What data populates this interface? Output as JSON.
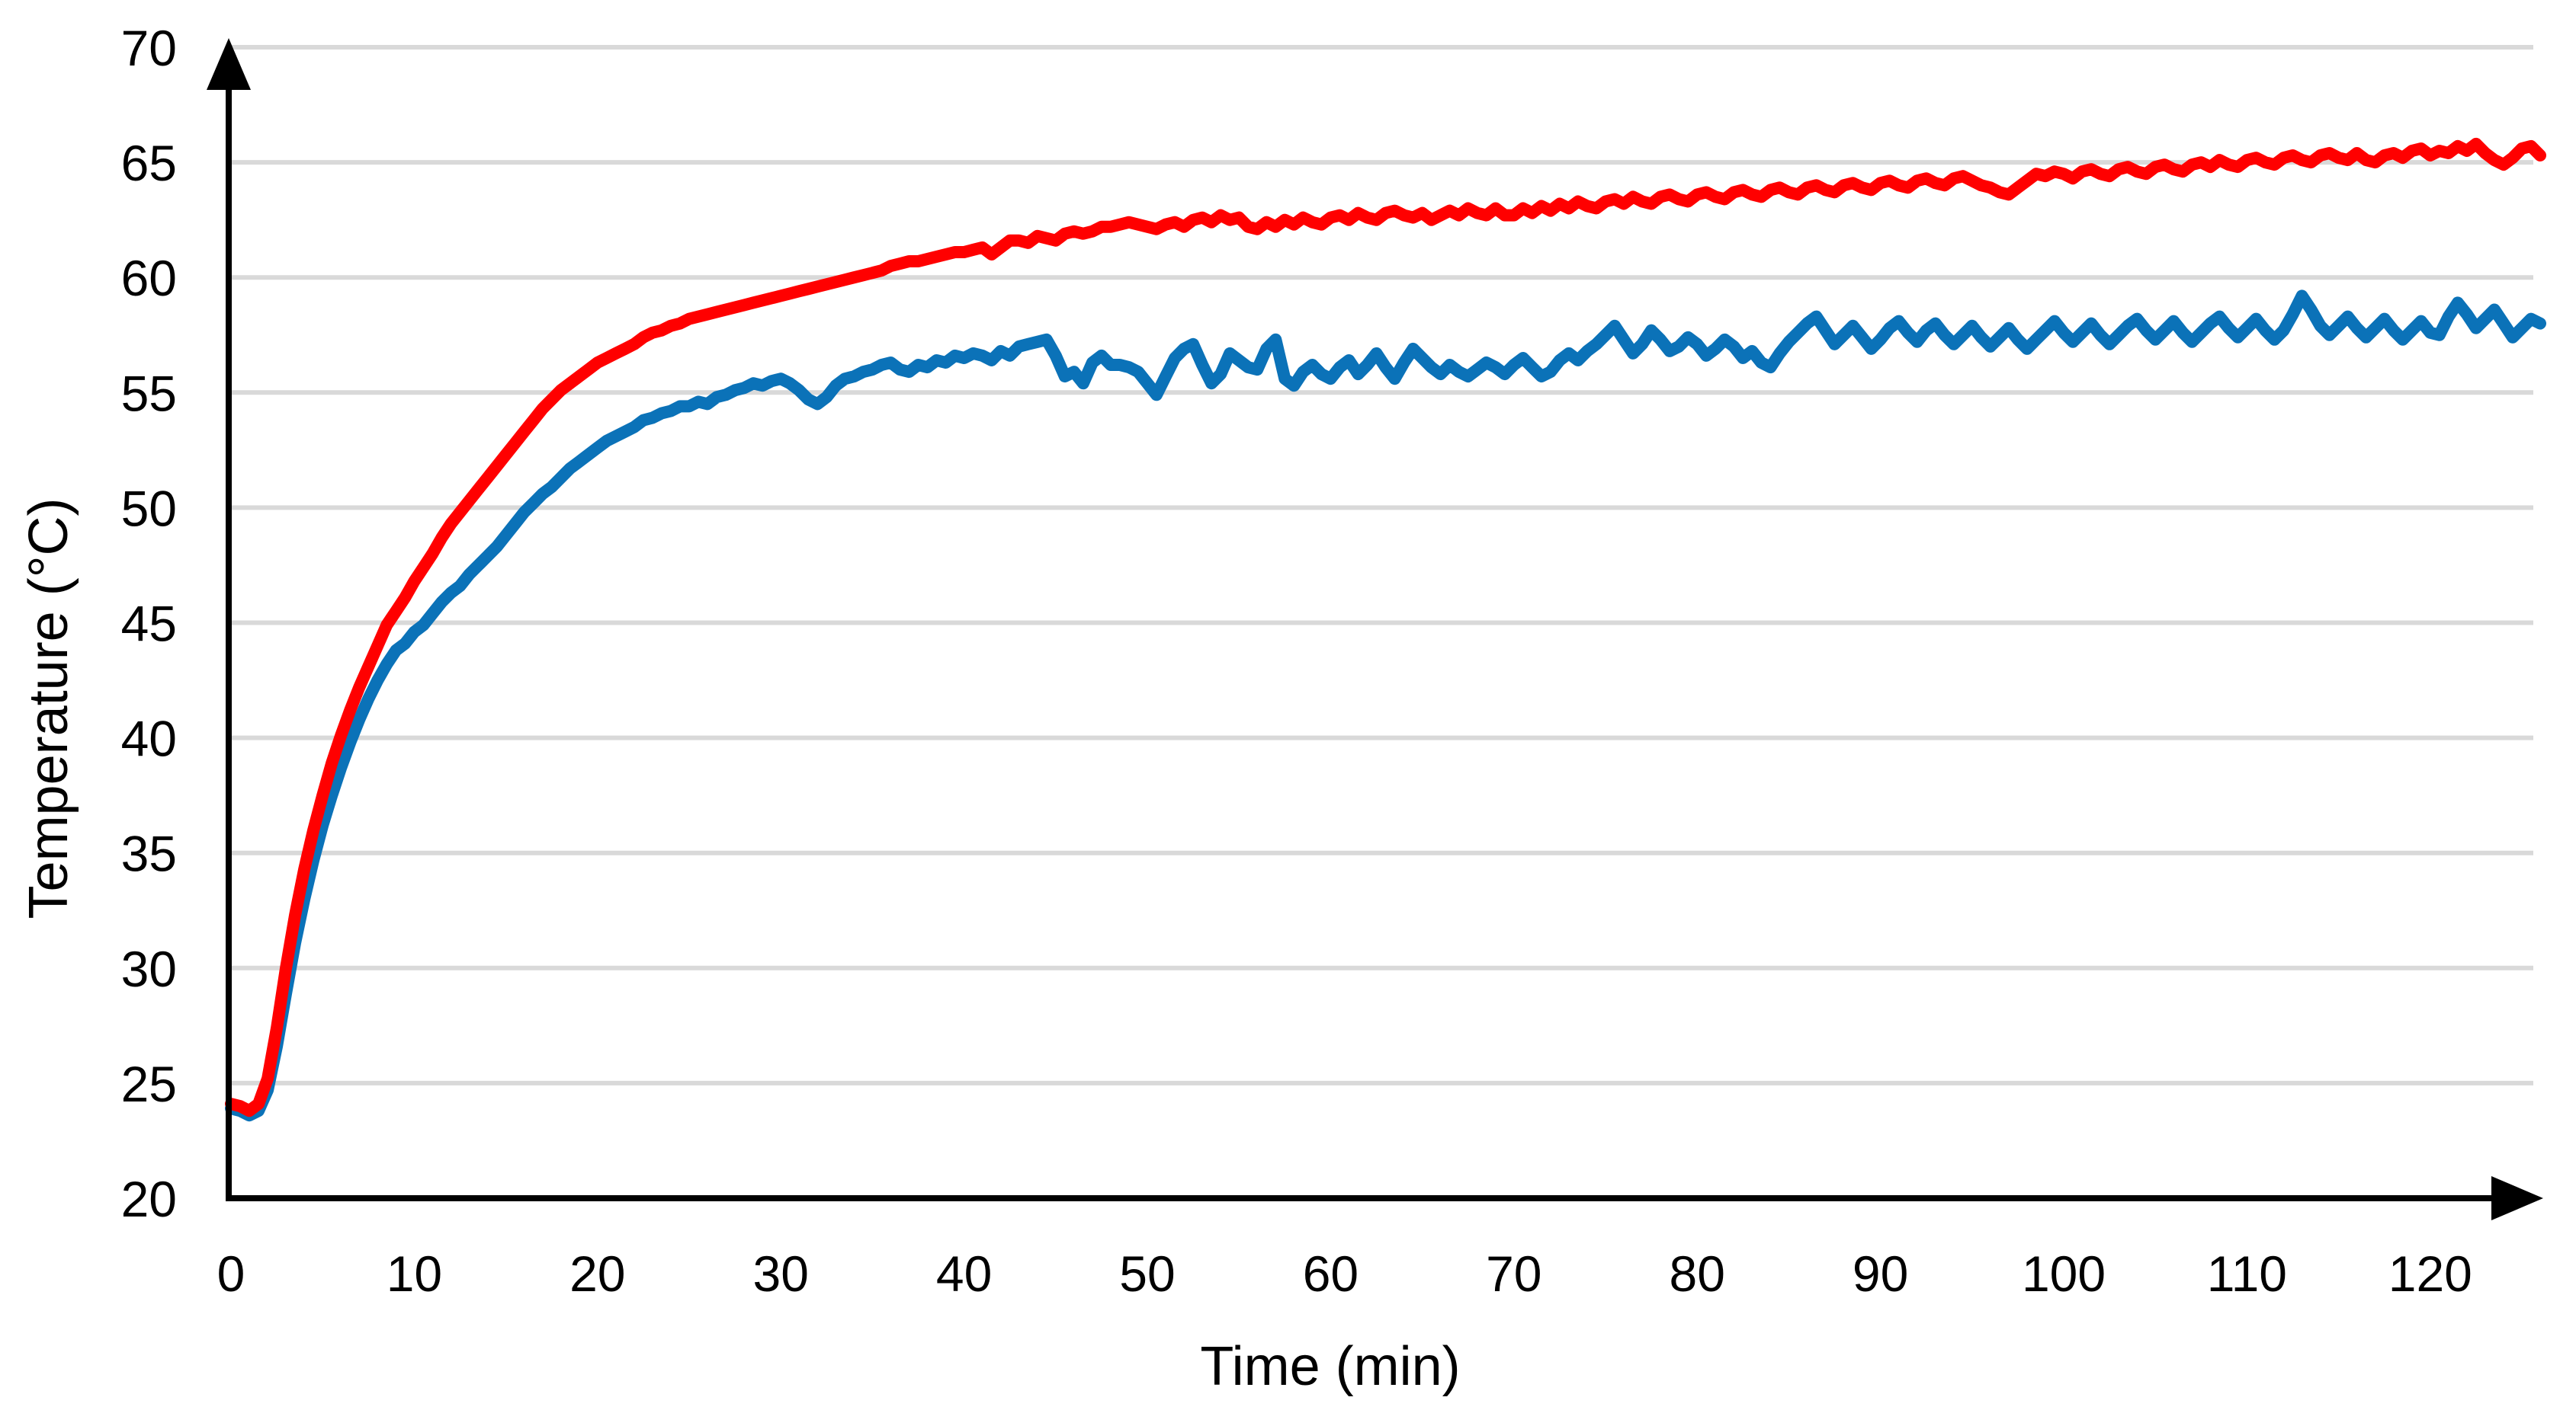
{
  "chart_data": {
    "type": "line",
    "xlabel": "Time (min)",
    "ylabel": "Temperature (°C)",
    "xlim": [
      0,
      126
    ],
    "ylim": [
      20,
      70
    ],
    "x_ticks": [
      0,
      10,
      20,
      30,
      40,
      50,
      60,
      70,
      80,
      90,
      100,
      110,
      120
    ],
    "y_ticks": [
      20,
      25,
      30,
      35,
      40,
      45,
      50,
      55,
      60,
      65,
      70
    ],
    "grid": "horizontal-only",
    "legend_position": "none",
    "x_start_min": 0,
    "x_step_min": 0.5,
    "series": [
      {
        "name": "blue-lower-temperature-series",
        "color": "#0B72B8",
        "values": [
          23.9,
          23.8,
          23.6,
          23.8,
          24.7,
          26.6,
          28.9,
          31.1,
          33.0,
          34.7,
          36.2,
          37.5,
          38.7,
          39.8,
          40.8,
          41.7,
          42.5,
          43.2,
          43.8,
          44.1,
          44.6,
          44.9,
          45.4,
          45.9,
          46.3,
          46.6,
          47.1,
          47.5,
          47.9,
          48.3,
          48.8,
          49.3,
          49.8,
          50.2,
          50.6,
          50.9,
          51.3,
          51.7,
          52.0,
          52.3,
          52.6,
          52.9,
          53.1,
          53.3,
          53.5,
          53.8,
          53.9,
          54.1,
          54.2,
          54.4,
          54.4,
          54.6,
          54.5,
          54.8,
          54.9,
          55.1,
          55.2,
          55.4,
          55.3,
          55.5,
          55.6,
          55.4,
          55.1,
          54.7,
          54.5,
          54.8,
          55.3,
          55.6,
          55.7,
          55.9,
          56.0,
          56.2,
          56.3,
          56.0,
          55.9,
          56.2,
          56.1,
          56.4,
          56.3,
          56.6,
          56.5,
          56.7,
          56.6,
          56.4,
          56.8,
          56.6,
          57.0,
          57.1,
          57.2,
          57.3,
          56.6,
          55.7,
          55.9,
          55.4,
          56.3,
          56.6,
          56.2,
          56.2,
          56.1,
          55.9,
          55.4,
          54.9,
          55.7,
          56.5,
          56.9,
          57.1,
          56.2,
          55.4,
          55.8,
          56.7,
          56.4,
          56.1,
          56.0,
          56.9,
          57.3,
          55.6,
          55.3,
          55.9,
          56.2,
          55.8,
          55.6,
          56.1,
          56.4,
          55.8,
          56.2,
          56.7,
          56.1,
          55.6,
          56.3,
          56.9,
          56.5,
          56.1,
          55.8,
          56.2,
          55.9,
          55.7,
          56.0,
          56.3,
          56.1,
          55.8,
          56.2,
          56.5,
          56.1,
          55.7,
          55.9,
          56.4,
          56.7,
          56.4,
          56.8,
          57.1,
          57.5,
          57.9,
          57.3,
          56.7,
          57.1,
          57.7,
          57.3,
          56.8,
          57.0,
          57.4,
          57.1,
          56.6,
          56.9,
          57.3,
          57.0,
          56.5,
          56.8,
          56.3,
          56.1,
          56.7,
          57.2,
          57.6,
          58.0,
          58.3,
          57.7,
          57.1,
          57.5,
          57.9,
          57.4,
          56.9,
          57.3,
          57.8,
          58.1,
          57.6,
          57.2,
          57.7,
          58.0,
          57.5,
          57.1,
          57.5,
          57.9,
          57.4,
          57.0,
          57.4,
          57.8,
          57.3,
          56.9,
          57.3,
          57.7,
          58.1,
          57.6,
          57.2,
          57.6,
          58.0,
          57.5,
          57.1,
          57.5,
          57.9,
          58.2,
          57.7,
          57.3,
          57.7,
          58.1,
          57.6,
          57.2,
          57.6,
          58.0,
          58.3,
          57.8,
          57.4,
          57.8,
          58.2,
          57.7,
          57.3,
          57.7,
          58.4,
          59.2,
          58.6,
          57.9,
          57.5,
          57.9,
          58.3,
          57.8,
          57.4,
          57.8,
          58.2,
          57.7,
          57.3,
          57.7,
          58.1,
          57.6,
          57.5,
          58.3,
          58.9,
          58.4,
          57.8,
          58.2,
          58.6,
          58.0,
          57.4,
          57.8,
          58.2,
          58.0
        ]
      },
      {
        "name": "red-upper-temperature-series",
        "color": "#FF0000",
        "values": [
          24.1,
          24.0,
          23.8,
          24.1,
          25.2,
          27.4,
          30.0,
          32.3,
          34.3,
          36.0,
          37.5,
          38.9,
          40.1,
          41.2,
          42.2,
          43.1,
          44.0,
          44.9,
          45.5,
          46.1,
          46.8,
          47.4,
          48.0,
          48.7,
          49.3,
          49.8,
          50.3,
          50.8,
          51.3,
          51.8,
          52.3,
          52.8,
          53.3,
          53.8,
          54.3,
          54.7,
          55.1,
          55.4,
          55.7,
          56.0,
          56.3,
          56.5,
          56.7,
          56.9,
          57.1,
          57.4,
          57.6,
          57.7,
          57.9,
          58.0,
          58.2,
          58.3,
          58.4,
          58.5,
          58.6,
          58.7,
          58.8,
          58.9,
          59.0,
          59.1,
          59.2,
          59.3,
          59.4,
          59.5,
          59.6,
          59.7,
          59.8,
          59.9,
          60.0,
          60.1,
          60.2,
          60.3,
          60.5,
          60.6,
          60.7,
          60.7,
          60.8,
          60.9,
          61.0,
          61.1,
          61.1,
          61.2,
          61.3,
          61.0,
          61.3,
          61.6,
          61.6,
          61.5,
          61.8,
          61.7,
          61.6,
          61.9,
          62.0,
          61.9,
          62.0,
          62.2,
          62.2,
          62.3,
          62.4,
          62.3,
          62.2,
          62.1,
          62.3,
          62.4,
          62.2,
          62.5,
          62.6,
          62.4,
          62.7,
          62.5,
          62.6,
          62.2,
          62.1,
          62.4,
          62.2,
          62.5,
          62.3,
          62.6,
          62.4,
          62.3,
          62.6,
          62.7,
          62.5,
          62.8,
          62.6,
          62.5,
          62.8,
          62.9,
          62.7,
          62.6,
          62.8,
          62.5,
          62.7,
          62.9,
          62.7,
          63.0,
          62.8,
          62.7,
          63.0,
          62.7,
          62.7,
          63.0,
          62.8,
          63.1,
          62.9,
          63.2,
          63.0,
          63.3,
          63.1,
          63.0,
          63.3,
          63.4,
          63.2,
          63.5,
          63.3,
          63.2,
          63.5,
          63.6,
          63.4,
          63.3,
          63.6,
          63.7,
          63.5,
          63.4,
          63.7,
          63.8,
          63.6,
          63.5,
          63.8,
          63.9,
          63.7,
          63.6,
          63.9,
          64.0,
          63.8,
          63.7,
          64.0,
          64.1,
          63.9,
          63.8,
          64.1,
          64.2,
          64.0,
          63.9,
          64.2,
          64.3,
          64.1,
          64.0,
          64.3,
          64.4,
          64.2,
          64.0,
          63.9,
          63.7,
          63.6,
          63.9,
          64.2,
          64.5,
          64.4,
          64.6,
          64.5,
          64.3,
          64.6,
          64.7,
          64.5,
          64.4,
          64.7,
          64.8,
          64.6,
          64.5,
          64.8,
          64.9,
          64.7,
          64.6,
          64.9,
          65.0,
          64.8,
          65.1,
          64.9,
          64.8,
          65.1,
          65.2,
          65.0,
          64.9,
          65.2,
          65.3,
          65.1,
          65.0,
          65.3,
          65.4,
          65.2,
          65.1,
          65.4,
          65.1,
          65.0,
          65.3,
          65.4,
          65.2,
          65.5,
          65.6,
          65.3,
          65.5,
          65.4,
          65.7,
          65.5,
          65.8,
          65.4,
          65.1,
          64.9,
          65.2,
          65.6,
          65.7,
          65.3
        ]
      }
    ]
  },
  "styles": {
    "grid_color": "#D9D9D9",
    "axis_color": "#000000",
    "tick_label_color": "#000000",
    "background_color": "#FFFFFF"
  }
}
